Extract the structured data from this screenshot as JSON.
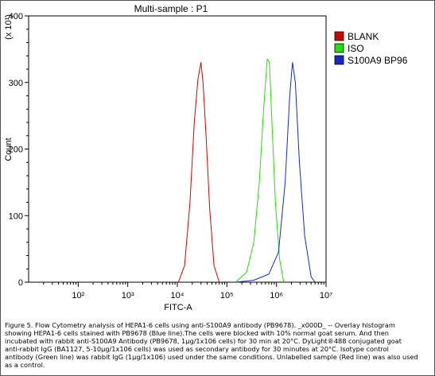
{
  "chart_data": {
    "type": "line",
    "title": "Multi-sample : P1",
    "xlabel": "FITC-A",
    "ylabel": "Count",
    "y_multiplier": "(x 10¹)",
    "xscale": "log",
    "xlim": [
      10,
      10000000
    ],
    "ylim": [
      0,
      400
    ],
    "x_tick_labels": [
      "10²",
      "10³",
      "10⁴",
      "10⁵",
      "10⁶",
      "10⁷"
    ],
    "x_tick_values": [
      100,
      1000,
      10000,
      100000,
      1000000,
      10000000
    ],
    "y_tick_labels": [
      "0",
      "100",
      "200",
      "300",
      "400"
    ],
    "y_tick_values": [
      0,
      100,
      200,
      300,
      400
    ],
    "legend_position": "top-right",
    "series": [
      {
        "name": "BLANK",
        "color": "#d10000",
        "x": [
          10500,
          14000,
          18000,
          22000,
          26000,
          30000,
          33000,
          38000,
          45000,
          55000,
          70000
        ],
        "y": [
          0,
          25,
          120,
          240,
          305,
          330,
          300,
          220,
          110,
          25,
          0
        ]
      },
      {
        "name": "ISO",
        "color": "#22e000",
        "x": [
          150000,
          250000,
          350000,
          450000,
          550000,
          650000,
          720000,
          800000,
          950000,
          1150000,
          1400000
        ],
        "y": [
          0,
          15,
          60,
          150,
          260,
          335,
          330,
          250,
          120,
          35,
          0
        ]
      },
      {
        "name": "S100A9 BP96",
        "color": "#1428c8",
        "x": [
          150000,
          350000,
          700000,
          1100000,
          1500000,
          1850000,
          2100000,
          2400000,
          2900000,
          3700000,
          5000000,
          6000000
        ],
        "y": [
          0,
          3,
          12,
          45,
          150,
          280,
          330,
          300,
          180,
          70,
          8,
          0
        ]
      }
    ]
  },
  "caption": "Figure 5. Flow Cytometry analysis of HEPA1-6 cells using anti-S100A9 antibody (PB9678). _x000D_ -- Overlay histogram showing HEPA1-6 cells stained with PB9678 (Blue line).The cells were blocked with 10% normal goat serum. And then incubated with rabbit anti-S100A9 Antibody (PB9678, 1μg/1x106 cells) for 30 min at 20°C. DyLight®488 conjugated goat anti-rabbit IgG (BA1127, 5-10μg/1x106 cells) was used as secondary antibody for 30 minutes at 20°C. Isotype control antibody (Green line) was rabbit IgG (1μg/1x106) used under the same conditions. Unlabelled sample (Red line) was also used as a control."
}
